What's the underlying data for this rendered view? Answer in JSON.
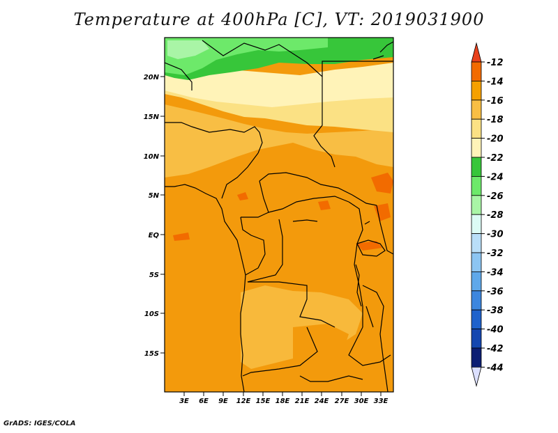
{
  "title": "Temperature at 400hPa [C], VT: 2019031900",
  "credit": "GrADS: IGES/COLA",
  "latitude_labels": [
    "20N",
    "15N",
    "10N",
    "5N",
    "EQ",
    "5S",
    "10S",
    "15S"
  ],
  "longitude_labels": [
    "3E",
    "6E",
    "9E",
    "12E",
    "15E",
    "18E",
    "21E",
    "24E",
    "27E",
    "30E",
    "33E"
  ],
  "colorbar": {
    "labels": [
      "-12",
      "-14",
      "-16",
      "-18",
      "-20",
      "-22",
      "-24",
      "-26",
      "-28",
      "-30",
      "-32",
      "-34",
      "-36",
      "-38",
      "-40",
      "-42",
      "-44"
    ],
    "colors": [
      "#e8411c",
      "#f26b00",
      "#f5a000",
      "#f8be44",
      "#fbe184",
      "#fff3b8",
      "#37c63a",
      "#6de96a",
      "#a9f5a6",
      "#dcfbf5",
      "#b9def8",
      "#8cc5f2",
      "#5fa8ea",
      "#3c86de",
      "#1e62cc",
      "#1447b0",
      "#0c1e73",
      "#dce0ff"
    ]
  },
  "colors": {
    "dominant_field": "#f39a0c",
    "mid_field": "#f8be44",
    "light_field": "#fbe184",
    "pale_field": "#fff3b8",
    "green_high": "#37c63a",
    "green_light": "#6de96a",
    "hot_spots": "#f26b00"
  }
}
